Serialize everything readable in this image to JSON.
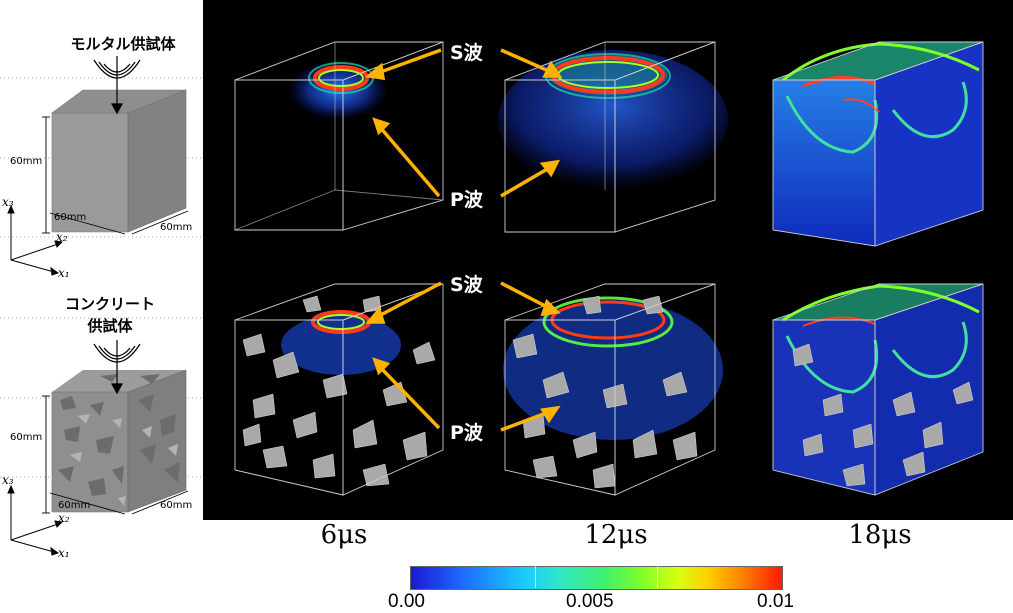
{
  "specimens": {
    "mortar": {
      "label": "モルタル供試体",
      "height_dim": "60mm",
      "depth_dim": "60mm",
      "width_dim": "60mm"
    },
    "concrete": {
      "label_line1": "コンクリート",
      "label_line2": "供試体",
      "height_dim": "60mm",
      "depth_dim": "60mm",
      "width_dim": "60mm"
    }
  },
  "axes": {
    "x1": "x₁",
    "x2": "x₂",
    "x3": "x₃"
  },
  "wave_labels": {
    "row1_s": "S波",
    "row1_p": "P波",
    "row2_s": "S波",
    "row2_p": "P波"
  },
  "time_labels": [
    "6μs",
    "12μs",
    "18μs"
  ],
  "colorbar": {
    "min_label": "0.00",
    "mid_label": "0.005",
    "max_label": "0.01",
    "colors": [
      "#1a1ad0",
      "#19c9ff",
      "#3ef070",
      "#d8ff10",
      "#ff1a00"
    ]
  },
  "colors": {
    "arrow": "#ffb300",
    "background": "#000000"
  }
}
